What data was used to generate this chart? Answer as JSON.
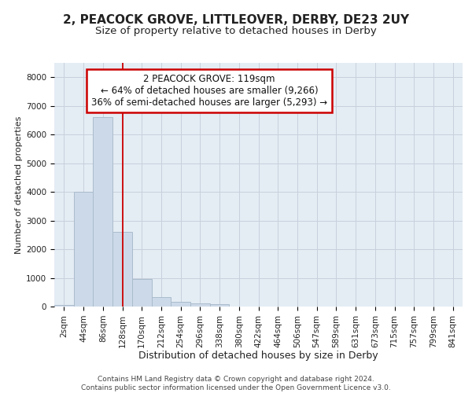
{
  "title1": "2, PEACOCK GROVE, LITTLEOVER, DERBY, DE23 2UY",
  "title2": "Size of property relative to detached houses in Derby",
  "xlabel": "Distribution of detached houses by size in Derby",
  "ylabel": "Number of detached properties",
  "bin_labels": [
    "2sqm",
    "44sqm",
    "86sqm",
    "128sqm",
    "170sqm",
    "212sqm",
    "254sqm",
    "296sqm",
    "338sqm",
    "380sqm",
    "422sqm",
    "464sqm",
    "506sqm",
    "547sqm",
    "589sqm",
    "631sqm",
    "673sqm",
    "715sqm",
    "757sqm",
    "799sqm",
    "841sqm"
  ],
  "bar_values": [
    60,
    4000,
    6600,
    2600,
    950,
    330,
    170,
    110,
    70,
    0,
    0,
    0,
    0,
    0,
    0,
    0,
    0,
    0,
    0,
    0,
    0
  ],
  "bar_color": "#ccd9e8",
  "bar_edge_color": "#aabccc",
  "grid_color": "#c8d0dc",
  "background_color": "#e4ecf4",
  "red_line_x": 3.0,
  "annotation_text": "2 PEACOCK GROVE: 119sqm\n← 64% of detached houses are smaller (9,266)\n36% of semi-detached houses are larger (5,293) →",
  "annotation_box_color": "#ffffff",
  "annotation_box_edge_color": "#cc0000",
  "ylim": [
    0,
    8500
  ],
  "yticks": [
    0,
    1000,
    2000,
    3000,
    4000,
    5000,
    6000,
    7000,
    8000
  ],
  "footer_text": "Contains HM Land Registry data © Crown copyright and database right 2024.\nContains public sector information licensed under the Open Government Licence v3.0.",
  "title1_fontsize": 11,
  "title2_fontsize": 9.5,
  "xlabel_fontsize": 9,
  "ylabel_fontsize": 8,
  "tick_fontsize": 7.5,
  "annotation_fontsize": 8.5,
  "footer_fontsize": 6.5
}
